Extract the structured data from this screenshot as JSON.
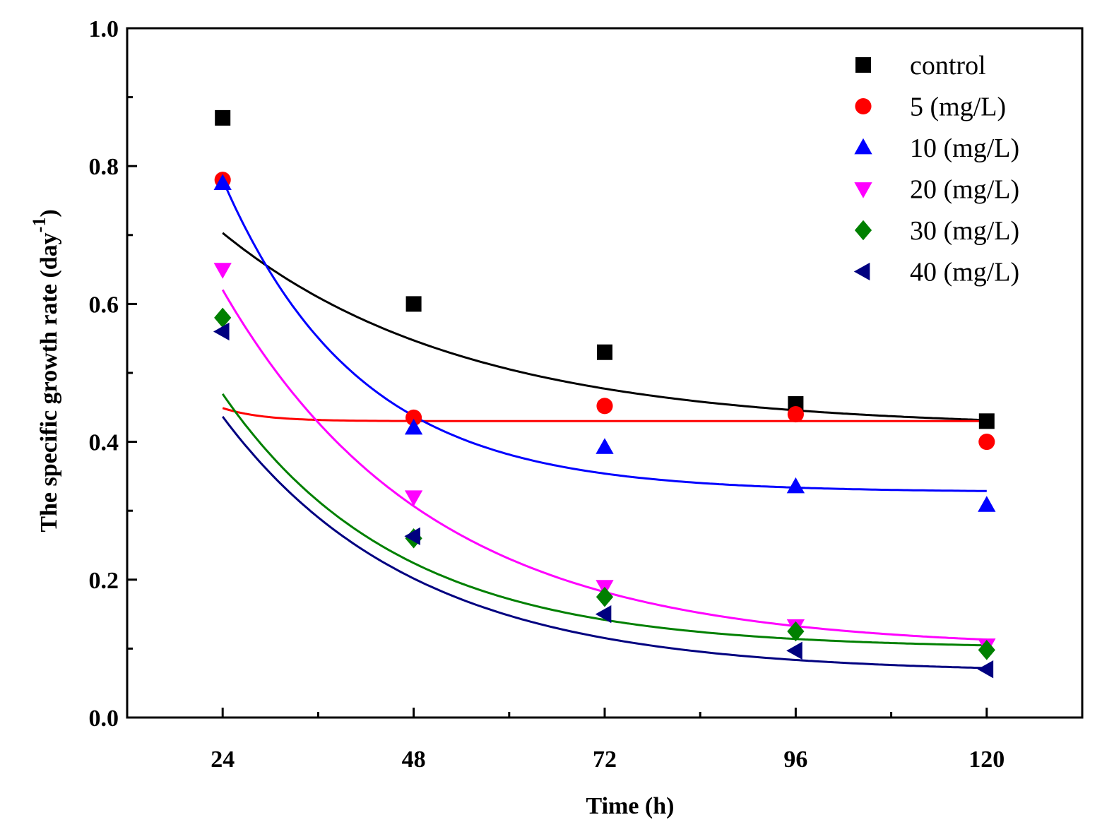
{
  "chart_data": {
    "type": "scatter",
    "title": "",
    "xlabel": "Time (h)",
    "ylabel": "The specific growth rate (day",
    "ylabel_superscript": "-1",
    "ylabel_suffix": ")",
    "xlim": [
      12,
      132
    ],
    "ylim": [
      0.0,
      1.0
    ],
    "x_ticks": [
      24,
      48,
      72,
      96,
      120
    ],
    "x_tick_labels": [
      "24",
      "48",
      "72",
      "96",
      "120"
    ],
    "y_ticks": [
      0.0,
      0.2,
      0.4,
      0.6,
      0.8,
      1.0
    ],
    "y_tick_labels": [
      "0.0",
      "0.2",
      "0.4",
      "0.6",
      "0.8",
      "1.0"
    ],
    "grid": false,
    "legend_position": "top-right",
    "x": [
      24,
      48,
      72,
      96,
      120
    ],
    "series": [
      {
        "name": "control",
        "marker": "square",
        "color": "#000000",
        "values": [
          0.87,
          0.6,
          0.53,
          0.455,
          0.43
        ],
        "fit": {
          "model": "exponential_decay",
          "y0": 0.42,
          "A": 0.63,
          "t": 30
        }
      },
      {
        "name": "5 (mg/L)",
        "marker": "circle",
        "color": "#ff0000",
        "values": [
          0.78,
          0.435,
          0.452,
          0.44,
          0.4
        ],
        "fit": {
          "model": "exponential_decay",
          "y0": 0.43,
          "A": 2.31,
          "t": 5
        }
      },
      {
        "name": "10 (mg/L)",
        "marker": "triangle-up",
        "color": "#0000ff",
        "values": [
          0.775,
          0.42,
          0.392,
          0.335,
          0.308
        ],
        "fit": {
          "model": "exponential_decay",
          "y0": 0.327,
          "A": 1.86,
          "t": 17
        }
      },
      {
        "name": "20 (mg/L)",
        "marker": "triangle-down",
        "color": "#ff00ff",
        "values": [
          0.65,
          0.32,
          0.19,
          0.133,
          0.105
        ],
        "fit": {
          "model": "exponential_decay",
          "y0": 0.1,
          "A": 1.31,
          "t": 26
        }
      },
      {
        "name": "30 (mg/L)",
        "marker": "diamond",
        "color": "#008000",
        "values": [
          0.58,
          0.26,
          0.175,
          0.125,
          0.098
        ],
        "fit": {
          "model": "exponential_decay",
          "y0": 0.1,
          "A": 1.1,
          "t": 22
        }
      },
      {
        "name": "40 (mg/L)",
        "marker": "triangle-left",
        "color": "#000080",
        "values": [
          0.56,
          0.263,
          0.15,
          0.097,
          0.07
        ],
        "fit": {
          "model": "exponential_decay",
          "y0": 0.065,
          "A": 1.01,
          "t": 24
        }
      }
    ]
  }
}
